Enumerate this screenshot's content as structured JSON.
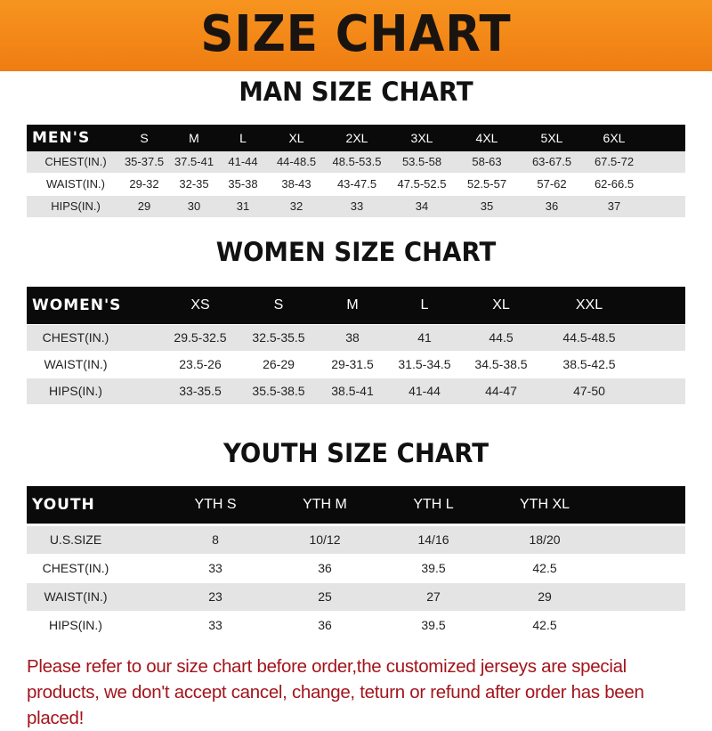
{
  "title": "SIZE CHART",
  "men": {
    "title": "MAN SIZE CHART",
    "header": [
      "MEN'S",
      "S",
      "M",
      "L",
      "XL",
      "2XL",
      "3XL",
      "4XL",
      "5XL",
      "6XL"
    ],
    "rows": [
      [
        "CHEST(IN.)",
        "35-37.5",
        "37.5-41",
        "41-44",
        "44-48.5",
        "48.5-53.5",
        "53.5-58",
        "58-63",
        "63-67.5",
        "67.5-72"
      ],
      [
        "WAIST(IN.)",
        "29-32",
        "32-35",
        "35-38",
        "38-43",
        "43-47.5",
        "47.5-52.5",
        "52.5-57",
        "57-62",
        "62-66.5"
      ],
      [
        "HIPS(IN.)",
        "29",
        "30",
        "31",
        "32",
        "33",
        "34",
        "35",
        "36",
        "37"
      ]
    ]
  },
  "women": {
    "title": "WOMEN SIZE CHART",
    "header": [
      "WOMEN'S",
      "XS",
      "S",
      "M",
      "L",
      "XL",
      "XXL"
    ],
    "rows": [
      [
        "CHEST(IN.)",
        "29.5-32.5",
        "32.5-35.5",
        "38",
        "41",
        "44.5",
        "44.5-48.5"
      ],
      [
        "WAIST(IN.)",
        "23.5-26",
        "26-29",
        "29-31.5",
        "31.5-34.5",
        "34.5-38.5",
        "38.5-42.5"
      ],
      [
        "HIPS(IN.)",
        "33-35.5",
        "35.5-38.5",
        "38.5-41",
        "41-44",
        "44-47",
        "47-50"
      ]
    ]
  },
  "youth": {
    "title": "YOUTH SIZE CHART",
    "header": [
      "YOUTH",
      "YTH S",
      "YTH M",
      "YTH L",
      "YTH XL"
    ],
    "rows": [
      [
        "U.S.SIZE",
        "8",
        "10/12",
        "14/16",
        "18/20"
      ],
      [
        "CHEST(IN.)",
        "33",
        "36",
        "39.5",
        "42.5"
      ],
      [
        "WAIST(IN.)",
        "23",
        "25",
        "27",
        "29"
      ],
      [
        "HIPS(IN.)",
        "33",
        "36",
        "39.5",
        "42.5"
      ]
    ]
  },
  "note": "Please refer to our size chart before order,the customized jerseys are special products, we don't accept cancel, change, teturn or refund after order has been placed!",
  "colors": {
    "banner": "#f28a1a",
    "header_row": "#0a0a0a",
    "note": "#a3141c"
  }
}
